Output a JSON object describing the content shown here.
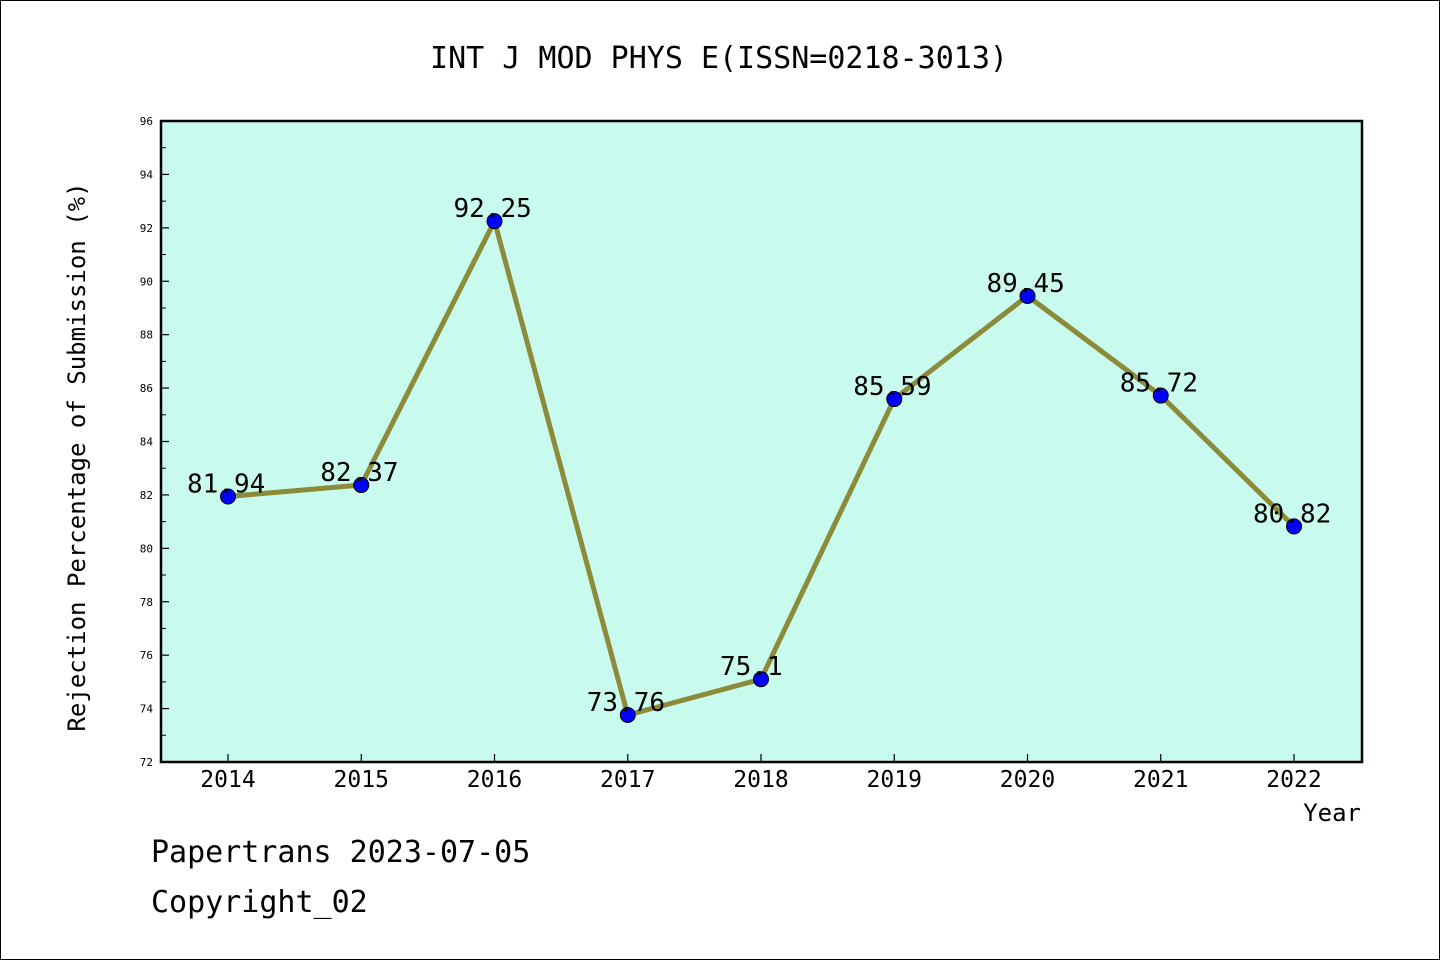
{
  "chart_data": {
    "type": "line",
    "title": "INT J MOD PHYS E(ISSN=0218-3013)",
    "xlabel": "Year",
    "ylabel": "Rejection Percentage of Submission (%)",
    "categories": [
      "2014",
      "2015",
      "2016",
      "2017",
      "2018",
      "2019",
      "2020",
      "2021",
      "2022"
    ],
    "values": [
      81.94,
      82.37,
      92.25,
      73.76,
      75.1,
      85.59,
      89.45,
      85.72,
      80.82
    ],
    "data_labels": [
      "81.94",
      "82.37",
      "92.25",
      "73.76",
      "75.1",
      "85.59",
      "89.45",
      "85.72",
      "80.82"
    ],
    "ylim": [
      72,
      96
    ],
    "yticks": [
      72,
      74,
      76,
      78,
      80,
      82,
      84,
      86,
      88,
      90,
      92,
      94,
      96
    ],
    "grid": false,
    "colors": {
      "plot_background": "#c8fbed",
      "line": "#8b8b3a",
      "marker": "#0000ff"
    }
  },
  "footer": {
    "source": "Papertrans 2023-07-05",
    "copyright": "Copyright_02"
  }
}
